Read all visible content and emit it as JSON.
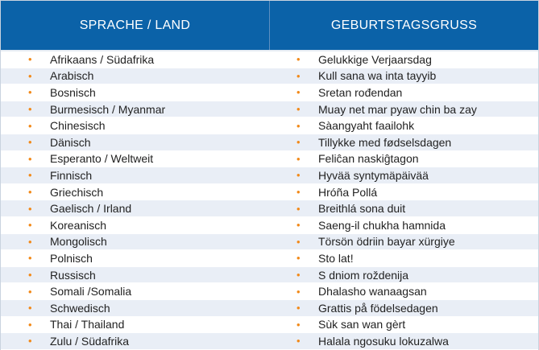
{
  "header": {
    "col1": "SPRACHE / LAND",
    "col2": "GEBURTSTAGSGRUSS"
  },
  "bullet_glyph": "•",
  "bullet_color": "#f28a1a",
  "header_color": "#0b62a8",
  "rows": [
    {
      "language": "Afrikaans / Südafrika",
      "greeting": "Gelukkige Verjaarsdag"
    },
    {
      "language": "Arabisch",
      "greeting": "Kull sana wa inta tayyib"
    },
    {
      "language": "Bosnisch",
      "greeting": "Sretan rođendan"
    },
    {
      "language": "Burmesisch / Myanmar",
      "greeting": "Muay net mar pyaw chin ba zay"
    },
    {
      "language": "Chinesisch",
      "greeting": "Sàangyaht faailohk"
    },
    {
      "language": "Dänisch",
      "greeting": "Tillykke med fødselsdagen"
    },
    {
      "language": "Esperanto / Weltweit",
      "greeting": "Feliĉan naskiĝtagon"
    },
    {
      "language": "Finnisch",
      "greeting": "Hyvää syntymäpäivää"
    },
    {
      "language": "Griechisch",
      "greeting": "Hróña Pollá"
    },
    {
      "language": "Gaelisch / Irland",
      "greeting": "Breithlá sona duit"
    },
    {
      "language": "Koreanisch",
      "greeting": "Saeng-il chukha hamnida"
    },
    {
      "language": "Mongolisch",
      "greeting": "Törsön ödriin bayar xürgiye"
    },
    {
      "language": "Polnisch",
      "greeting": "Sto lat!"
    },
    {
      "language": "Russisch",
      "greeting": "S dniom roždenija"
    },
    {
      "language": "Somali /Somalia",
      "greeting": "Dhalasho wanaagsan"
    },
    {
      "language": "Schwedisch",
      "greeting": "Grattis på födelsedagen"
    },
    {
      "language": "Thai / Thailand",
      "greeting": "Sùk san wan gèrt"
    },
    {
      "language": "Zulu / Südafrika",
      "greeting": "Halala ngosuku lokuzalwa"
    }
  ]
}
